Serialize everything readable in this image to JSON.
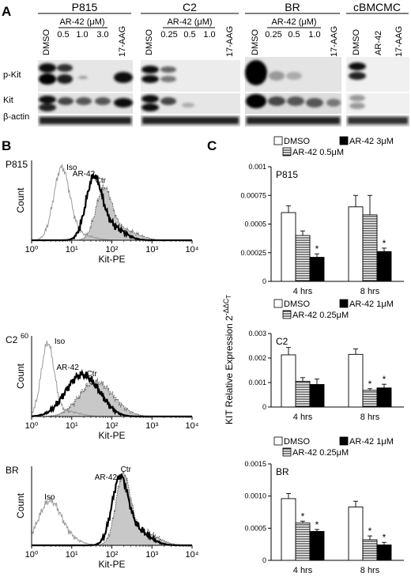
{
  "panel_labels": {
    "a": "A",
    "b": "B",
    "c": "C"
  },
  "blot": {
    "cell_lines": [
      "P815",
      "C2",
      "BR",
      "cBMCMC"
    ],
    "row_labels": [
      "p-Kit",
      "Kit",
      "β-actin"
    ],
    "lane_headers": {
      "p815": {
        "dmso": "DMSO",
        "group": "AR-42 (μM)",
        "doses": [
          "0.5",
          "1.0",
          "3.0"
        ],
        "aag": "17-AAG"
      },
      "c2": {
        "dmso": "DMSO",
        "group": "AR-42 (μM)",
        "doses": [
          "0.25",
          "0.5",
          "1.0"
        ],
        "aag": "17-AAG"
      },
      "br": {
        "dmso": "DMSO",
        "group": "AR-42 (μM)",
        "doses": [
          "0.25",
          "0.5",
          "1.0"
        ],
        "aag": "17-AAG"
      },
      "cbmcmc": {
        "lanes": [
          "DMSO",
          "AR-42",
          "17-AAG"
        ]
      }
    }
  },
  "flow": {
    "xlabel": "Kit-PE",
    "ylabel": "Count",
    "x_ticks": [
      "10⁰",
      "10¹",
      "10²",
      "10³",
      "10⁴"
    ],
    "panels": [
      {
        "name": "P815",
        "ymax_label": "",
        "labels": {
          "iso": "Iso",
          "ar42": "AR-42",
          "ctr": "Ctr"
        }
      },
      {
        "name": "C2",
        "ymax_label": "60",
        "labels": {
          "iso": "Iso",
          "ar42": "AR-42",
          "ctr": "Ctr"
        }
      },
      {
        "name": "BR",
        "ymax_label": "",
        "labels": {
          "iso": "Iso",
          "ar42": "AR-42",
          "ctr": "Ctr"
        }
      }
    ]
  },
  "chart_data": [
    {
      "type": "bar",
      "title": "P815",
      "ylabel": "KIT Relative Expression 2^-ΔΔCT",
      "categories": [
        "4 hrs",
        "8 hrs"
      ],
      "ylim": [
        0,
        0.001
      ],
      "yticks": [
        "0",
        "0.00025",
        "0.0005",
        "0.00075",
        "0.001"
      ],
      "legend": [
        "DMSO",
        "AR-42 3μM",
        "AR-42 0.5μM"
      ],
      "series": [
        {
          "name": "DMSO",
          "values": [
            0.0006,
            0.00065
          ],
          "errors": [
            6e-05,
            0.0001
          ]
        },
        {
          "name": "AR-42 0.5μM",
          "values": [
            0.0004,
            0.00058
          ],
          "errors": [
            4e-05,
            0.00017
          ]
        },
        {
          "name": "AR-42 3μM",
          "values": [
            0.00021,
            0.00026
          ],
          "errors": [
            3e-05,
            3e-05
          ]
        }
      ],
      "significance": [
        "",
        "",
        "*",
        "",
        "",
        "*"
      ]
    },
    {
      "type": "bar",
      "title": "C2",
      "ylabel": "KIT Relative Expression 2^-ΔΔCT",
      "categories": [
        "4 hrs",
        "8 hrs"
      ],
      "ylim": [
        0,
        0.003
      ],
      "yticks": [
        "0",
        "0.001",
        "0.002",
        "0.003"
      ],
      "legend": [
        "DMSO",
        "AR-42 1μM",
        "AR-42 0.25μM"
      ],
      "series": [
        {
          "name": "DMSO",
          "values": [
            0.00213,
            0.00215
          ],
          "errors": [
            0.0003,
            0.00022
          ]
        },
        {
          "name": "AR-42 0.25μM",
          "values": [
            0.00105,
            0.00068
          ],
          "errors": [
            0.00015,
            7e-05
          ]
        },
        {
          "name": "AR-42 1μM",
          "values": [
            0.00092,
            0.00078
          ],
          "errors": [
            0.00022,
            0.00015
          ]
        }
      ],
      "significance": [
        "",
        "",
        "",
        "",
        "*",
        "*"
      ]
    },
    {
      "type": "bar",
      "title": "BR",
      "ylabel": "KIT Relative Expression 2^-ΔΔCT",
      "categories": [
        "4 hrs",
        "8 hrs"
      ],
      "ylim": [
        0,
        0.0015
      ],
      "yticks": [
        "0",
        "0.0005",
        "0.0010",
        "0.0015"
      ],
      "legend": [
        "DMSO",
        "AR-42 1μM",
        "AR-42 0.25μM"
      ],
      "series": [
        {
          "name": "DMSO",
          "values": [
            0.00096,
            0.00083
          ],
          "errors": [
            8e-05,
            9e-05
          ]
        },
        {
          "name": "AR-42 0.25μM",
          "values": [
            0.00058,
            0.00032
          ],
          "errors": [
            3e-05,
            6e-05
          ]
        },
        {
          "name": "AR-42 1μM",
          "values": [
            0.00045,
            0.00024
          ],
          "errors": [
            3e-05,
            4e-05
          ]
        }
      ],
      "significance": [
        "",
        "*",
        "*",
        "",
        "*",
        "*"
      ]
    }
  ]
}
